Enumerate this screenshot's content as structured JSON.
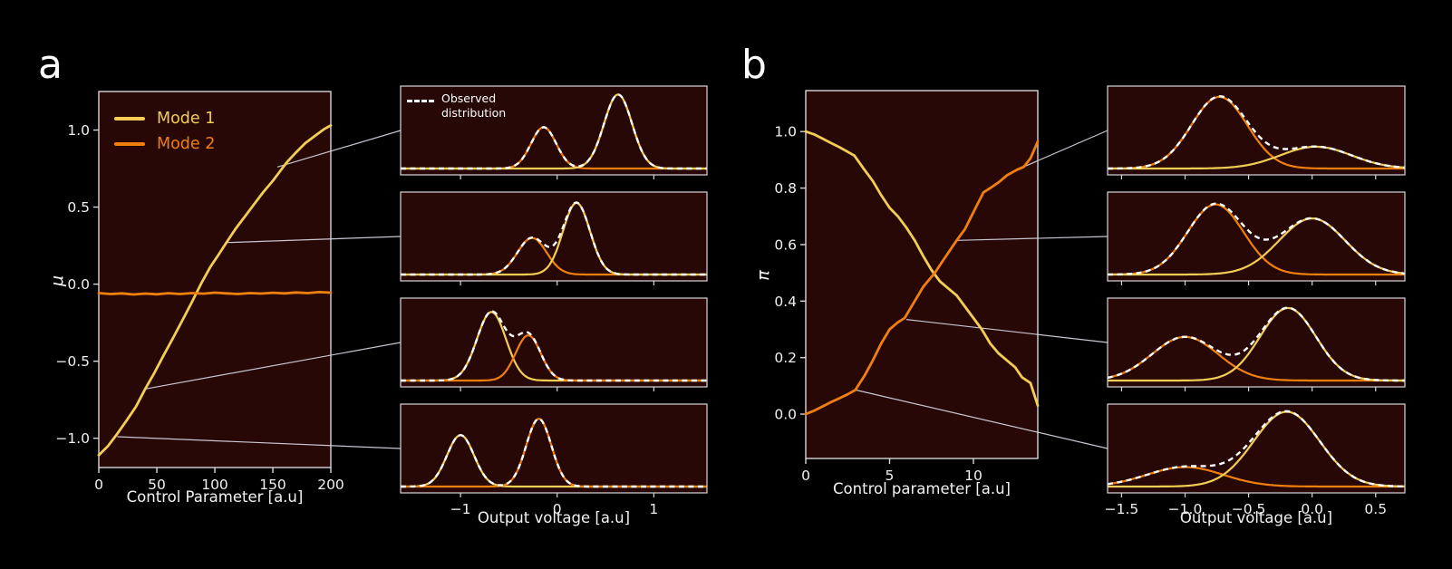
{
  "figure": {
    "background": "#000000",
    "plot_background": "#270807",
    "frame_color": "#d8d6da",
    "text_color": "#f2f2f2",
    "callout_color": "#c9c5d2",
    "colors": {
      "mode1": "#f2ce54",
      "mode2": "#f0800e",
      "observed": "#ffffff"
    }
  },
  "chart_data": {
    "panels": [
      {
        "label": "a",
        "main_chart": {
          "type": "line",
          "xlabel": "Control Parameter [a.u]",
          "ylabel": "μ",
          "xlim": [
            0,
            200
          ],
          "ylim": [
            -1.19,
            1.25
          ],
          "xticks": [
            0,
            50,
            100,
            150,
            200
          ],
          "xtick_labels": [
            "0",
            "50",
            "100",
            "150",
            "200"
          ],
          "yticks": [
            1.0,
            0.5,
            0.0,
            -0.5,
            -1.0
          ],
          "ytick_labels": [
            "1.0",
            "0.5",
            "0.0",
            "−0.5",
            "−1.0"
          ],
          "grid": false,
          "legend_position": "upper-left",
          "legend": [
            {
              "label": "Mode 1",
              "color": "mode1"
            },
            {
              "label": "Mode 2",
              "color": "mode2"
            }
          ],
          "series": [
            {
              "name": "Mode 1",
              "color": "mode1",
              "points": [
                [
                  0,
                  -1.11
                ],
                [
                  8,
                  -1.05
                ],
                [
                  16,
                  -0.97
                ],
                [
                  24,
                  -0.885
                ],
                [
                  32,
                  -0.795
                ],
                [
                  40,
                  -0.68
                ],
                [
                  48,
                  -0.575
                ],
                [
                  56,
                  -0.46
                ],
                [
                  64,
                  -0.35
                ],
                [
                  72,
                  -0.235
                ],
                [
                  80,
                  -0.12
                ],
                [
                  88,
                  0.0
                ],
                [
                  96,
                  0.11
                ],
                [
                  104,
                  0.2
                ],
                [
                  110,
                  0.27
                ],
                [
                  118,
                  0.36
                ],
                [
                  126,
                  0.44
                ],
                [
                  134,
                  0.52
                ],
                [
                  142,
                  0.6
                ],
                [
                  150,
                  0.67
                ],
                [
                  154,
                  0.71
                ],
                [
                  162,
                  0.79
                ],
                [
                  170,
                  0.855
                ],
                [
                  178,
                  0.915
                ],
                [
                  186,
                  0.96
                ],
                [
                  194,
                  1.005
                ],
                [
                  200,
                  1.03
                ]
              ]
            },
            {
              "name": "Mode 2",
              "color": "mode2",
              "points": [
                [
                  0,
                  -0.058
                ],
                [
                  10,
                  -0.064
                ],
                [
                  20,
                  -0.06
                ],
                [
                  30,
                  -0.067
                ],
                [
                  40,
                  -0.061
                ],
                [
                  50,
                  -0.066
                ],
                [
                  60,
                  -0.059
                ],
                [
                  70,
                  -0.064
                ],
                [
                  80,
                  -0.058
                ],
                [
                  90,
                  -0.062
                ],
                [
                  100,
                  -0.055
                ],
                [
                  110,
                  -0.06
                ],
                [
                  120,
                  -0.064
                ],
                [
                  130,
                  -0.058
                ],
                [
                  140,
                  -0.061
                ],
                [
                  150,
                  -0.056
                ],
                [
                  160,
                  -0.06
                ],
                [
                  170,
                  -0.054
                ],
                [
                  180,
                  -0.058
                ],
                [
                  190,
                  -0.052
                ],
                [
                  200,
                  -0.055
                ]
              ]
            }
          ]
        },
        "distribution_plots": {
          "type": "gaussian-mixture",
          "xlabel": "Output voltage [a.u]",
          "xlim": [
            -1.62,
            1.55
          ],
          "xticks": [
            -1,
            0,
            1
          ],
          "xtick_labels": [
            "−1",
            "0",
            "1"
          ],
          "legend": {
            "lines": [
              "Observed",
              "distribution"
            ],
            "series": "observed"
          },
          "rows": [
            {
              "components": [
                {
                  "mode": "mode2",
                  "mean": -0.14,
                  "sigma": 0.13,
                  "amplitude": 0.53
                },
                {
                  "mode": "mode1",
                  "mean": 0.63,
                  "sigma": 0.145,
                  "amplitude": 0.95
                }
              ]
            },
            {
              "components": [
                {
                  "mode": "mode2",
                  "mean": -0.26,
                  "sigma": 0.15,
                  "amplitude": 0.47
                },
                {
                  "mode": "mode1",
                  "mean": 0.2,
                  "sigma": 0.14,
                  "amplitude": 0.92
                }
              ]
            },
            {
              "components": [
                {
                  "mode": "mode1",
                  "mean": -0.68,
                  "sigma": 0.15,
                  "amplitude": 0.88
                },
                {
                  "mode": "mode2",
                  "mean": -0.3,
                  "sigma": 0.13,
                  "amplitude": 0.58
                }
              ]
            },
            {
              "components": [
                {
                  "mode": "mode1",
                  "mean": -1.0,
                  "sigma": 0.14,
                  "amplitude": 0.66
                },
                {
                  "mode": "mode2",
                  "mean": -0.19,
                  "sigma": 0.13,
                  "amplitude": 0.87
                }
              ]
            }
          ]
        },
        "callouts": [
          {
            "from": [
              154,
              0.76
            ],
            "to_row": 0
          },
          {
            "from": [
              111,
              0.27
            ],
            "to_row": 1
          },
          {
            "from": [
              40,
              -0.68
            ],
            "to_row": 2
          },
          {
            "from": [
              16,
              -0.99
            ],
            "to_row": 3
          }
        ]
      },
      {
        "label": "b",
        "main_chart": {
          "type": "line",
          "xlabel": "Control parameter [a.u]",
          "ylabel": "π",
          "xlim": [
            0,
            13.84
          ],
          "ylim": [
            -0.157,
            1.145
          ],
          "xticks": [
            0,
            5,
            10
          ],
          "xtick_labels": [
            "0",
            "5",
            "10"
          ],
          "yticks": [
            1.0,
            0.8,
            0.6,
            0.4,
            0.2,
            0.0
          ],
          "ytick_labels": [
            "1.0",
            "0.8",
            "0.6",
            "0.4",
            "0.2",
            "0.0"
          ],
          "grid": false,
          "series": [
            {
              "name": "Mode 1",
              "color": "mode1",
              "points": [
                [
                  0,
                  1.0
                ],
                [
                  0.5,
                  0.99
                ],
                [
                  1,
                  0.975
                ],
                [
                  1.5,
                  0.96
                ],
                [
                  2,
                  0.945
                ],
                [
                  2.9,
                  0.915
                ],
                [
                  3.5,
                  0.865
                ],
                [
                  4,
                  0.825
                ],
                [
                  4.5,
                  0.775
                ],
                [
                  5,
                  0.73
                ],
                [
                  5.5,
                  0.7
                ],
                [
                  6,
                  0.66
                ],
                [
                  6.5,
                  0.615
                ],
                [
                  7,
                  0.56
                ],
                [
                  7.5,
                  0.51
                ],
                [
                  8,
                  0.47
                ],
                [
                  8.5,
                  0.445
                ],
                [
                  9,
                  0.42
                ],
                [
                  9.5,
                  0.38
                ],
                [
                  10,
                  0.34
                ],
                [
                  10.5,
                  0.3
                ],
                [
                  11,
                  0.25
                ],
                [
                  11.5,
                  0.215
                ],
                [
                  12,
                  0.19
                ],
                [
                  12.5,
                  0.165
                ],
                [
                  12.9,
                  0.13
                ],
                [
                  13.4,
                  0.11
                ],
                [
                  13.84,
                  0.03
                ]
              ]
            },
            {
              "name": "Mode 2",
              "color": "mode2",
              "points": [
                [
                  0,
                  0.0
                ],
                [
                  0.5,
                  0.012
                ],
                [
                  1,
                  0.027
                ],
                [
                  1.5,
                  0.042
                ],
                [
                  2,
                  0.056
                ],
                [
                  2.5,
                  0.07
                ],
                [
                  2.95,
                  0.085
                ],
                [
                  3.5,
                  0.135
                ],
                [
                  4,
                  0.19
                ],
                [
                  4.5,
                  0.25
                ],
                [
                  5,
                  0.3
                ],
                [
                  5.5,
                  0.325
                ],
                [
                  5.9,
                  0.34
                ],
                [
                  6.5,
                  0.4
                ],
                [
                  7,
                  0.45
                ],
                [
                  7.7,
                  0.5
                ],
                [
                  8.2,
                  0.545
                ],
                [
                  9,
                  0.615
                ],
                [
                  9.5,
                  0.655
                ],
                [
                  10,
                  0.715
                ],
                [
                  10.6,
                  0.785
                ],
                [
                  11,
                  0.8
                ],
                [
                  11.5,
                  0.82
                ],
                [
                  12,
                  0.845
                ],
                [
                  12.6,
                  0.865
                ],
                [
                  13,
                  0.875
                ],
                [
                  13.4,
                  0.905
                ],
                [
                  13.84,
                  0.965
                ]
              ]
            }
          ]
        },
        "distribution_plots": {
          "type": "gaussian-mixture",
          "xlabel": "Output voltage [a.u]",
          "xlim": [
            -1.61,
            0.73
          ],
          "xticks": [
            -1.5,
            -1.0,
            -0.5,
            0.0,
            0.5
          ],
          "xtick_labels": [
            "−1.5",
            "−1.0",
            "−0.5",
            "0.0",
            "0.5"
          ],
          "rows": [
            {
              "components": [
                {
                  "mode": "mode2",
                  "mean": -0.73,
                  "sigma": 0.22,
                  "amplitude": 0.92
                },
                {
                  "mode": "mode1",
                  "mean": 0.03,
                  "sigma": 0.28,
                  "amplitude": 0.28
                }
              ]
            },
            {
              "components": [
                {
                  "mode": "mode2",
                  "mean": -0.76,
                  "sigma": 0.22,
                  "amplitude": 0.9
                },
                {
                  "mode": "mode1",
                  "mean": 0.0,
                  "sigma": 0.26,
                  "amplitude": 0.72
                }
              ]
            },
            {
              "components": [
                {
                  "mode": "mode2",
                  "mean": -1.0,
                  "sigma": 0.26,
                  "amplitude": 0.56
                },
                {
                  "mode": "mode1",
                  "mean": -0.19,
                  "sigma": 0.22,
                  "amplitude": 0.93
                }
              ]
            },
            {
              "components": [
                {
                  "mode": "mode2",
                  "mean": -1.0,
                  "sigma": 0.3,
                  "amplitude": 0.25
                },
                {
                  "mode": "mode1",
                  "mean": -0.2,
                  "sigma": 0.26,
                  "amplitude": 0.96
                }
              ]
            }
          ]
        },
        "callouts": [
          {
            "from": [
              12.6,
              0.865
            ],
            "to_row": 0
          },
          {
            "from": [
              9.05,
              0.615
            ],
            "to_row": 1
          },
          {
            "from": [
              6.0,
              0.335
            ],
            "to_row": 2
          },
          {
            "from": [
              3.0,
              0.085
            ],
            "to_row": 3
          }
        ]
      }
    ]
  }
}
